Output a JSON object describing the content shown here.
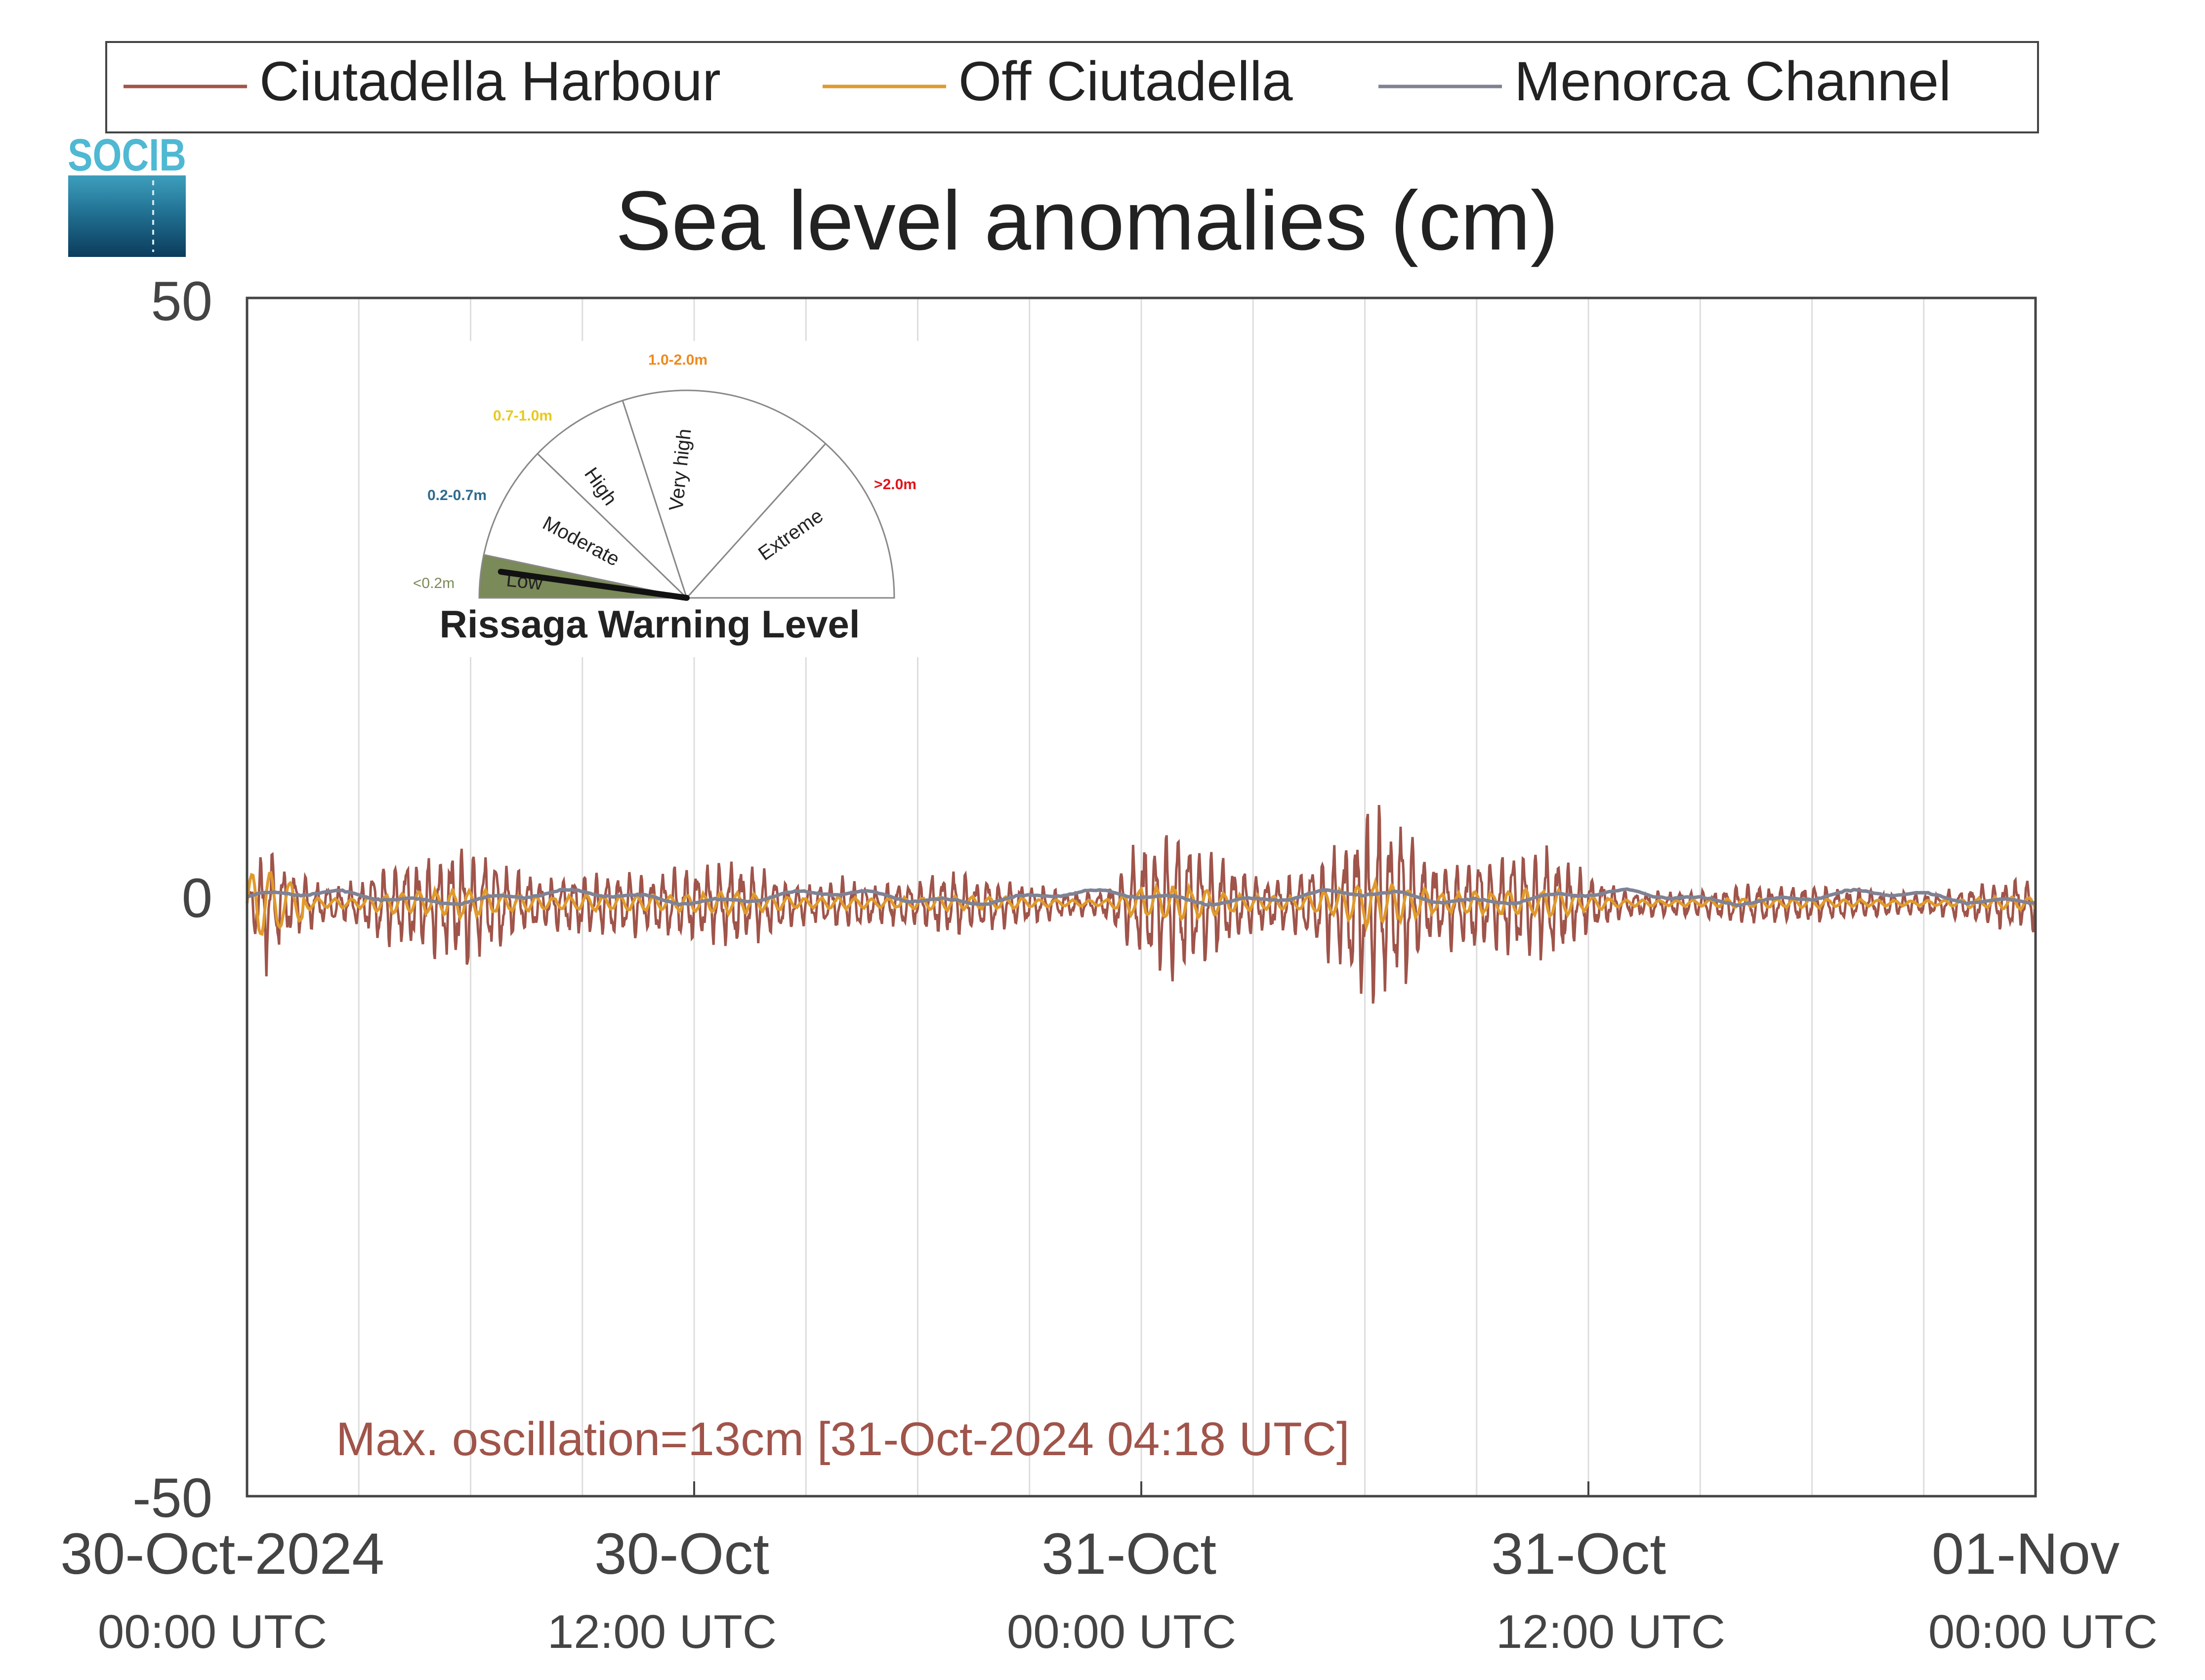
{
  "logo": {
    "text": "SOCIB",
    "colors": {
      "top": "#4fb8d3",
      "mid": "#2a7f9e",
      "bottom": "#0c3c5c"
    }
  },
  "legend": {
    "placement": "top",
    "items": [
      {
        "label": "Ciutadella Harbour",
        "color": "#a0544a"
      },
      {
        "label": "Off Ciutadella",
        "color": "#e09a2c"
      },
      {
        "label": "Menorca Channel",
        "color": "#7f8294"
      }
    ]
  },
  "chart_data": {
    "type": "line",
    "title": "Sea level anomalies (cm)",
    "xlabel": "",
    "ylabel": "",
    "ylim": [
      -50,
      50
    ],
    "xlim_hours": [
      0,
      48
    ],
    "grid_vertical": true,
    "x_ticks": [
      {
        "date": "30-Oct-2024",
        "time": "00:00 UTC"
      },
      {
        "date": "30-Oct",
        "time": "12:00 UTC"
      },
      {
        "date": "31-Oct",
        "time": "00:00 UTC"
      },
      {
        "date": "31-Oct",
        "time": "12:00 UTC"
      },
      {
        "date": "01-Nov",
        "time": "00:00 UTC"
      }
    ],
    "y_ticks": [
      "50",
      "0",
      "-50"
    ],
    "series_envelope": {
      "Ciutadella Harbour": {
        "hours": [
          0,
          0.5,
          1,
          2,
          3,
          4,
          5,
          6,
          7,
          8,
          9,
          10,
          11,
          12,
          13,
          14,
          15,
          16,
          17,
          18,
          19,
          20,
          21,
          22,
          23,
          24,
          25,
          26,
          27,
          28,
          29,
          30,
          31,
          32,
          33,
          34,
          35,
          36,
          37,
          38,
          39,
          40,
          41,
          42,
          43,
          44,
          45,
          46,
          47,
          48
        ],
        "amplitude_cm": [
          1,
          5,
          3,
          1.5,
          1.8,
          3.5,
          4,
          5,
          3,
          2,
          2.5,
          2.5,
          2.5,
          3,
          3.5,
          2.5,
          1.5,
          2,
          1.5,
          2,
          2.5,
          2,
          1.5,
          1,
          1,
          5,
          6,
          4,
          2.5,
          2,
          4,
          7.5,
          6.5,
          3,
          4,
          4,
          4.5,
          2.5,
          1,
          1,
          1,
          1.5,
          1.5,
          1.5,
          1.2,
          1,
          0.8,
          1.2,
          2,
          2
        ]
      }
    },
    "max_oscillation_note": "Max. oscillation=13cm [31-Oct-2024 04:18 UTC]"
  },
  "inset": {
    "title": "Rissaga Warning Level",
    "sectors": [
      {
        "label": "Low",
        "range": "<0.2m",
        "color": "#7a8a58",
        "active": true
      },
      {
        "label": "Moderate",
        "range": "0.2-0.7m",
        "color": "#2e6b8f"
      },
      {
        "label": "High",
        "range": "0.7-1.0m",
        "color": "#e8c91c"
      },
      {
        "label": "Very high",
        "range": "1.0-2.0m",
        "color": "#ee8a1c"
      },
      {
        "label": "Extreme",
        "range": ">2.0m",
        "color": "#e0141c"
      }
    ],
    "needle_level": "Low"
  },
  "colors": {
    "axis": "#444444",
    "grid": "#dddddd",
    "note": "#a0544a",
    "title": "#222222"
  }
}
